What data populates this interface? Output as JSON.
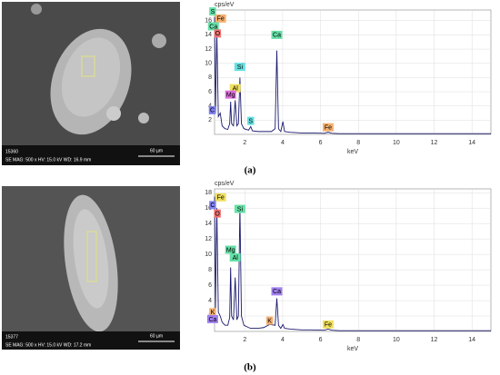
{
  "chart_data": [
    {
      "type": "line",
      "y_label": "cps/eV",
      "x_label": "keV",
      "xlim": [
        0.4,
        15
      ],
      "ylim": [
        0,
        17.5
      ],
      "xticks": [
        2,
        4,
        6,
        8,
        10,
        12,
        14
      ],
      "yticks": [
        2,
        4,
        6,
        8,
        10,
        12,
        14,
        16
      ],
      "grid": true,
      "series": [
        {
          "color": "#1a1a6e",
          "x": [
            0.4,
            0.45,
            0.52,
            0.6,
            0.7,
            0.8,
            0.95,
            1.1,
            1.2,
            1.25,
            1.3,
            1.4,
            1.49,
            1.58,
            1.66,
            1.74,
            1.82,
            1.95,
            2.2,
            2.31,
            2.4,
            2.7,
            3.0,
            3.4,
            3.6,
            3.69,
            3.78,
            3.9,
            4.01,
            4.1,
            4.4,
            5,
            5.5,
            6.2,
            6.4,
            6.6,
            7,
            8,
            9,
            10,
            11,
            12,
            13,
            14,
            15
          ],
          "values": [
            16.5,
            3,
            14.5,
            2.5,
            3,
            1.2,
            0.8,
            0.7,
            1.5,
            4.6,
            1.5,
            1.2,
            4.8,
            1.2,
            1.5,
            8,
            1.5,
            0.8,
            0.6,
            1.1,
            0.5,
            0.4,
            0.4,
            0.4,
            0.8,
            11.8,
            0.8,
            0.4,
            1.8,
            0.4,
            0.3,
            0.2,
            0.2,
            0.15,
            0.3,
            0.15,
            0.1,
            0.1,
            0.1,
            0.1,
            0.1,
            0.1,
            0.1,
            0.1,
            0.1
          ]
        }
      ],
      "annotations": [
        {
          "text": "S",
          "x": 0.3,
          "y": 17.3,
          "color": "#66e0a8"
        },
        {
          "text": "Fe",
          "x": 0.72,
          "y": 16.3,
          "color": "#f5b070"
        },
        {
          "text": "Ca",
          "x": 0.34,
          "y": 15.2,
          "color": "#66e0a8"
        },
        {
          "text": "O",
          "x": 0.56,
          "y": 14.2,
          "color": "#f07070"
        },
        {
          "text": "Ca",
          "x": 3.69,
          "y": 14,
          "color": "#66e0a8"
        },
        {
          "text": "Si",
          "x": 1.74,
          "y": 9.5,
          "color": "#66e0e0"
        },
        {
          "text": "Al",
          "x": 1.49,
          "y": 6.5,
          "color": "#f0e060"
        },
        {
          "text": "Mg",
          "x": 1.25,
          "y": 5.6,
          "color": "#e070e0"
        },
        {
          "text": "C",
          "x": 0.28,
          "y": 3.4,
          "color": "#8080f0"
        },
        {
          "text": "S",
          "x": 2.31,
          "y": 1.9,
          "color": "#66e0e0"
        },
        {
          "text": "Fe",
          "x": 6.4,
          "y": 1,
          "color": "#f5b070"
        }
      ]
    },
    {
      "type": "line",
      "y_label": "cps/eV",
      "x_label": "keV",
      "xlim": [
        0.4,
        15
      ],
      "ylim": [
        0,
        18.5
      ],
      "xticks": [
        2,
        4,
        6,
        8,
        10,
        12,
        14
      ],
      "yticks": [
        2,
        4,
        6,
        8,
        10,
        12,
        14,
        16,
        18
      ],
      "grid": true,
      "series": [
        {
          "color": "#1a1a6e",
          "x": [
            0.4,
            0.45,
            0.52,
            0.6,
            0.7,
            0.8,
            0.95,
            1.1,
            1.2,
            1.25,
            1.3,
            1.4,
            1.49,
            1.58,
            1.66,
            1.74,
            1.82,
            1.95,
            2.2,
            2.31,
            2.4,
            2.7,
            3.0,
            3.31,
            3.6,
            3.69,
            3.78,
            3.9,
            4.01,
            4.1,
            4.4,
            5,
            5.5,
            6.2,
            6.4,
            6.6,
            7,
            8,
            9,
            10,
            11,
            12,
            13,
            14,
            15
          ],
          "values": [
            17.5,
            3,
            16,
            2.5,
            2,
            1.2,
            0.8,
            0.8,
            1.8,
            8.3,
            2,
            1.5,
            7,
            1.5,
            2,
            16.3,
            2,
            0.8,
            0.5,
            0.4,
            0.4,
            0.4,
            0.5,
            0.9,
            0.8,
            4.3,
            0.8,
            0.4,
            0.9,
            0.4,
            0.3,
            0.2,
            0.2,
            0.15,
            0.3,
            0.15,
            0.1,
            0.1,
            0.1,
            0.1,
            0.1,
            0.1,
            0.1,
            0.1,
            0.1
          ]
        }
      ],
      "annotations": [
        {
          "text": "Fe",
          "x": 0.72,
          "y": 17.4,
          "color": "#f0e060"
        },
        {
          "text": "C",
          "x": 0.3,
          "y": 16.4,
          "color": "#8080f0"
        },
        {
          "text": "O",
          "x": 0.55,
          "y": 15.3,
          "color": "#f07070"
        },
        {
          "text": "Si",
          "x": 1.74,
          "y": 15.9,
          "color": "#66e0a8"
        },
        {
          "text": "Mg",
          "x": 1.25,
          "y": 10.6,
          "color": "#66e0a8"
        },
        {
          "text": "Al",
          "x": 1.49,
          "y": 9.6,
          "color": "#66e0a8"
        },
        {
          "text": "Ca",
          "x": 3.69,
          "y": 5.2,
          "color": "#a080f0"
        },
        {
          "text": "K",
          "x": 0.3,
          "y": 2.5,
          "color": "#f5b070"
        },
        {
          "text": "Ca",
          "x": 0.3,
          "y": 1.6,
          "color": "#a080f0"
        },
        {
          "text": "K",
          "x": 3.31,
          "y": 1.4,
          "color": "#f5b070"
        },
        {
          "text": "Fe",
          "x": 6.4,
          "y": 0.9,
          "color": "#f0e060"
        }
      ]
    }
  ],
  "sem_images": [
    {
      "id": "15360",
      "info": "SE  MAG: 500 x  HV: 15.0 kV  WD: 16.9 mm",
      "scale": "60 µm"
    },
    {
      "id": "15377",
      "info": "SE  MAG: 500 x  HV: 15.0 kV  WD: 17.2 mm",
      "scale": "60 µm"
    }
  ],
  "panel_labels": [
    "(a)",
    "(b)"
  ]
}
